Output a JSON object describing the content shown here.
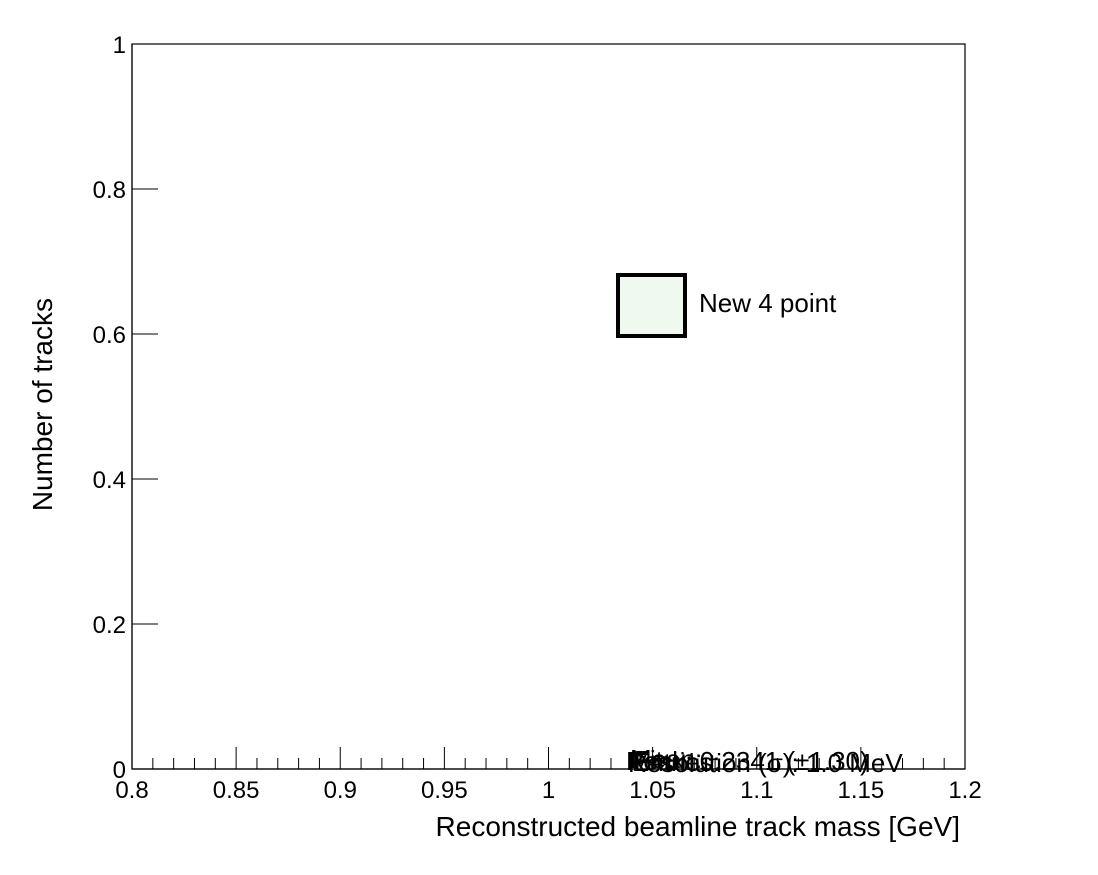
{
  "chart_data": {
    "type": "scatter",
    "title": "",
    "xlabel": "Reconstructed beamline track mass [GeV]",
    "ylabel": "Number of tracks",
    "xlim": [
      0.8,
      1.2
    ],
    "ylim": [
      0,
      1
    ],
    "x_ticks": [
      0.8,
      0.85,
      0.9,
      0.95,
      1,
      1.05,
      1.1,
      1.15,
      1.2
    ],
    "x_tick_labels": [
      "0.8",
      "0.85",
      "0.9",
      "0.95",
      "1",
      "1.05",
      "1.1",
      "1.15",
      "1.2"
    ],
    "y_ticks": [
      0,
      0.2,
      0.4,
      0.6,
      0.8,
      1
    ],
    "y_tick_labels": [
      "0",
      "0.2",
      "0.4",
      "0.6",
      "0.8",
      "1"
    ],
    "grid": false,
    "legend": {
      "placement": "top-right",
      "entries": [
        {
          "label": "New 4 point",
          "fill": "#f0f9f0",
          "border": "#000000"
        }
      ]
    },
    "overlapping_annotations": [
      "Peak: 0.2341 (±1.30)",
      "Resolution (σ): 1.0 MeV",
      "Mean:",
      "Entries:",
      "Fit:"
    ],
    "series": []
  }
}
